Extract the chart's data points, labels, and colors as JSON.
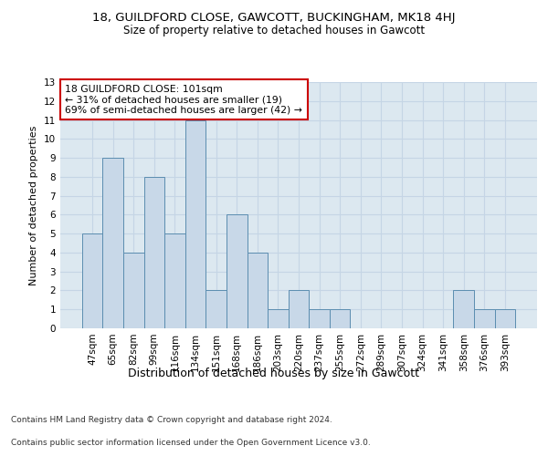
{
  "title": "18, GUILDFORD CLOSE, GAWCOTT, BUCKINGHAM, MK18 4HJ",
  "subtitle": "Size of property relative to detached houses in Gawcott",
  "xlabel": "Distribution of detached houses by size in Gawcott",
  "ylabel": "Number of detached properties",
  "categories": [
    "47sqm",
    "65sqm",
    "82sqm",
    "99sqm",
    "116sqm",
    "134sqm",
    "151sqm",
    "168sqm",
    "186sqm",
    "203sqm",
    "220sqm",
    "237sqm",
    "255sqm",
    "272sqm",
    "289sqm",
    "307sqm",
    "324sqm",
    "341sqm",
    "358sqm",
    "376sqm",
    "393sqm"
  ],
  "values": [
    5,
    9,
    4,
    8,
    5,
    11,
    2,
    6,
    4,
    1,
    2,
    1,
    1,
    0,
    0,
    0,
    0,
    0,
    2,
    1,
    1
  ],
  "bar_color": "#c8d8e8",
  "bar_edge_color": "#5b8db0",
  "annotation_text": "18 GUILDFORD CLOSE: 101sqm\n← 31% of detached houses are smaller (19)\n69% of semi-detached houses are larger (42) →",
  "annotation_box_color": "#ffffff",
  "annotation_box_edge_color": "#cc0000",
  "footer_line1": "Contains HM Land Registry data © Crown copyright and database right 2024.",
  "footer_line2": "Contains public sector information licensed under the Open Government Licence v3.0.",
  "ylim": [
    0,
    13
  ],
  "yticks": [
    0,
    1,
    2,
    3,
    4,
    5,
    6,
    7,
    8,
    9,
    10,
    11,
    12,
    13
  ],
  "grid_color": "#c5d5e5",
  "bg_color": "#dce8f0",
  "title_fontsize": 9.5,
  "subtitle_fontsize": 8.5,
  "tick_fontsize": 7.5,
  "ylabel_fontsize": 8,
  "xlabel_fontsize": 9,
  "annotation_fontsize": 7.8,
  "footer_fontsize": 6.5
}
